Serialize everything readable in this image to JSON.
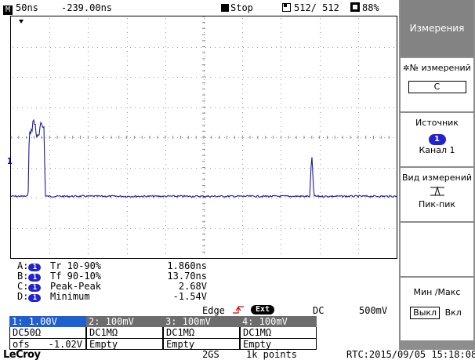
{
  "topbar": {
    "mode_glyph": "M",
    "timebase": "50ns",
    "delay": "-239.00ns",
    "run_state": "Stop",
    "acq_count": "512/ 512",
    "battery": "88%"
  },
  "marker": {
    "channel": "1"
  },
  "measurements": [
    {
      "id": "A:",
      "ch": "1",
      "name": "Tr 10-90%",
      "value": "1.860ns"
    },
    {
      "id": "B:",
      "ch": "1",
      "name": "Tf 90-10%",
      "value": "13.70ns"
    },
    {
      "id": "C:",
      "ch": "1",
      "name": "Peak-Peak",
      "value": "2.68V"
    },
    {
      "id": "D:",
      "ch": "1",
      "name": "Minimum",
      "value": "-1.54V"
    }
  ],
  "trigger": {
    "type": "Edge",
    "source": "Ext",
    "coupling": "DC",
    "level": "500mV"
  },
  "channels": [
    {
      "header": "1: 1.00V",
      "line1": "DC50Ω",
      "line2_label": "ofs",
      "line2_value": "-1.02V",
      "active": true
    },
    {
      "header": "2: 100mV",
      "line1": "DC1MΩ",
      "line2_label": "Empty",
      "line2_value": "",
      "active": false
    },
    {
      "header": "3: 100mV",
      "line1": "DC1MΩ",
      "line2_label": "Empty",
      "line2_value": "",
      "active": false
    },
    {
      "header": "4: 100mV",
      "line1": "DC1MΩ",
      "line2_label": "Empty",
      "line2_value": "",
      "active": false
    }
  ],
  "bottom": {
    "logo": "LeCroy",
    "sample_rate": "2GS",
    "record_length": "1k points",
    "rtc": "RTC:2015/09/05 15:18:08"
  },
  "menu": {
    "title": "Измерения",
    "item1_label": "№ измерений",
    "item1_value": "C",
    "item2_label": "Источник",
    "item2_channel": "1",
    "item2_value": "Канал 1",
    "item3_label": "Вид измерений",
    "item3_value": "Пик-пик",
    "item5_label": "Мин /Макс",
    "item5_off": "Выкл",
    "item5_on": "Вкл"
  },
  "colors": {
    "trace": "#1a1aa8",
    "channel_pill": "#2222d0",
    "active_channel_header": "#1f5fd0",
    "menu_bg": "#8d8d8d"
  },
  "waveform": {
    "baseline_v": -1.02,
    "pulses": [
      {
        "time_div": 0.75,
        "peak_v": 1.66,
        "description": "main pulse"
      },
      {
        "time_div": 7.8,
        "peak_v": 0.4,
        "description": "secondary spike"
      }
    ]
  }
}
